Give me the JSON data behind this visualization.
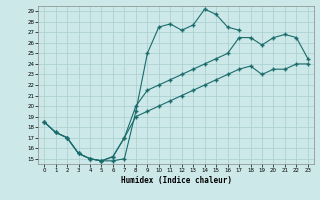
{
  "xlabel": "Humidex (Indice chaleur)",
  "xlim": [
    -0.5,
    23.5
  ],
  "ylim": [
    14.5,
    29.5
  ],
  "yticks": [
    15,
    16,
    17,
    18,
    19,
    20,
    21,
    22,
    23,
    24,
    25,
    26,
    27,
    28,
    29
  ],
  "xticks": [
    0,
    1,
    2,
    3,
    4,
    5,
    6,
    7,
    8,
    9,
    10,
    11,
    12,
    13,
    14,
    15,
    16,
    17,
    18,
    19,
    20,
    21,
    22,
    23
  ],
  "bg_color": "#cde8e8",
  "grid_color": "#aacece",
  "line_color": "#1a6b6b",
  "line1_x": [
    0,
    1,
    2,
    3,
    4,
    5,
    6,
    7,
    8,
    9,
    10,
    11,
    12,
    13,
    14,
    15,
    16,
    17
  ],
  "line1_y": [
    18.5,
    17.5,
    17.0,
    15.5,
    15.0,
    14.8,
    14.8,
    15.0,
    19.5,
    25.0,
    27.5,
    27.8,
    27.2,
    27.7,
    29.2,
    28.7,
    27.5,
    27.2
  ],
  "line2_x": [
    0,
    1,
    2,
    3,
    4,
    5,
    6,
    7,
    8,
    9,
    10,
    11,
    12,
    13,
    14,
    15,
    16,
    17,
    18,
    19,
    20,
    21,
    22,
    23
  ],
  "line2_y": [
    18.5,
    17.5,
    17.0,
    15.5,
    15.0,
    14.8,
    15.2,
    17.0,
    20.0,
    21.5,
    22.0,
    22.5,
    23.0,
    23.5,
    24.0,
    24.5,
    25.0,
    26.5,
    26.5,
    25.8,
    26.5,
    26.8,
    26.5,
    24.5
  ],
  "line3_x": [
    0,
    1,
    2,
    3,
    4,
    5,
    6,
    7,
    8,
    9,
    10,
    11,
    12,
    13,
    14,
    15,
    16,
    17,
    18,
    19,
    20,
    21,
    22,
    23
  ],
  "line3_y": [
    18.5,
    17.5,
    17.0,
    15.5,
    15.0,
    14.8,
    15.2,
    17.0,
    19.0,
    19.5,
    20.0,
    20.5,
    21.0,
    21.5,
    22.0,
    22.5,
    23.0,
    23.5,
    23.8,
    23.0,
    23.5,
    23.5,
    24.0,
    24.0
  ]
}
